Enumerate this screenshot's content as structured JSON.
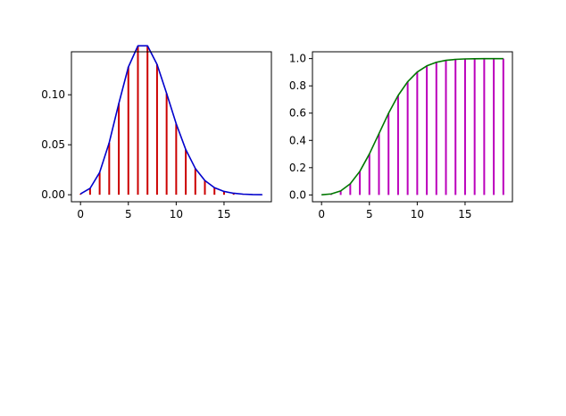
{
  "chart_data": [
    {
      "type": "line",
      "x": [
        0,
        1,
        2,
        3,
        4,
        5,
        6,
        7,
        8,
        9,
        10,
        11,
        12,
        13,
        14,
        15,
        16,
        17,
        18,
        19
      ],
      "series": [
        {
          "style": "stem+line",
          "values": [
            0.0009,
            0.0064,
            0.0223,
            0.0521,
            0.0912,
            0.1277,
            0.149,
            0.149,
            0.1304,
            0.1014,
            0.071,
            0.0452,
            0.0263,
            0.0142,
            0.0071,
            0.0033,
            0.0015,
            0.0006,
            0.0002,
            0.0001
          ],
          "stem_color": "#cc0000",
          "line_color": "#0000cc"
        }
      ],
      "xlim": [
        -0.95,
        19.95
      ],
      "ylim": [
        -0.007,
        0.143
      ],
      "xticks": [
        0,
        5,
        10,
        15
      ],
      "xtick_labels": [
        "0",
        "5",
        "10",
        "15"
      ],
      "yticks": [
        0.0,
        0.05,
        0.1
      ],
      "ytick_labels": [
        "0.00",
        "0.05",
        "0.10"
      ],
      "grid": false
    },
    {
      "type": "line",
      "x": [
        0,
        1,
        2,
        3,
        4,
        5,
        6,
        7,
        8,
        9,
        10,
        11,
        12,
        13,
        14,
        15,
        16,
        17,
        18,
        19
      ],
      "series": [
        {
          "style": "stem+line",
          "values": [
            0.0009,
            0.0073,
            0.0296,
            0.0818,
            0.173,
            0.3007,
            0.4497,
            0.5987,
            0.7291,
            0.8305,
            0.9015,
            0.9467,
            0.973,
            0.9872,
            0.9943,
            0.9976,
            0.999,
            0.9996,
            0.9999,
            1.0
          ],
          "stem_color": "#bb00bb",
          "line_color": "#007700"
        }
      ],
      "xlim": [
        -0.95,
        19.95
      ],
      "ylim": [
        -0.05,
        1.05
      ],
      "xticks": [
        0,
        5,
        10,
        15
      ],
      "xtick_labels": [
        "0",
        "5",
        "10",
        "15"
      ],
      "yticks": [
        0.0,
        0.2,
        0.4,
        0.6,
        0.8,
        1.0
      ],
      "ytick_labels": [
        "0.0",
        "0.2",
        "0.4",
        "0.6",
        "0.8",
        "1.0"
      ],
      "grid": false
    }
  ]
}
